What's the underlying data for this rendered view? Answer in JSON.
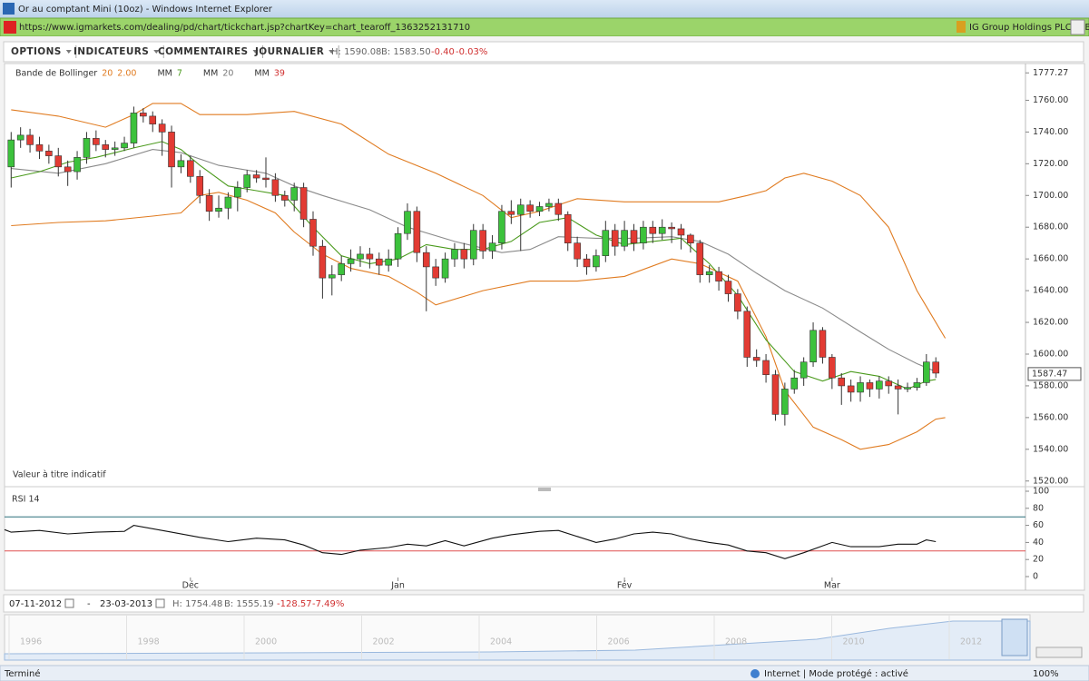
{
  "window": {
    "title": "Or au comptant Mini (10oz) - Windows Internet Explorer",
    "url": "https://www.igmarkets.com/dealing/pd/chart/tickchart.jsp?chartKey=chart_tearoff_1363252131710",
    "site": "IG Group Holdings PLC [GB]"
  },
  "toolbar": {
    "menus": [
      "OPTIONS",
      "INDICATEURS",
      "COMMENTAIRES",
      "JOURNALIER"
    ],
    "high": "H: 1590.08",
    "low": "B: 1583.50",
    "change": "-0.40",
    "change_pct": "-0.03%"
  },
  "chart_data": [
    {
      "type": "candlestick",
      "legend": [
        {
          "name": "Bande de Bollinger",
          "params": "20",
          "params2": "2.00",
          "color": "#e07b20"
        },
        {
          "name": "MM",
          "params": "7",
          "color": "#4a9a1c"
        },
        {
          "name": "MM",
          "params": "20",
          "color": "#777777"
        },
        {
          "name": "MM",
          "params": "39",
          "color": "#d03030"
        }
      ],
      "note": "Valeur à titre indicatif",
      "xlim": [
        -0.7,
        107.5
      ],
      "ylim": [
        1517,
        1782
      ],
      "yticks": [
        {
          "value": 1777.27,
          "label": "1777.27"
        },
        {
          "value": 1760,
          "label": "1760.00"
        },
        {
          "value": 1740,
          "label": "1740.00"
        },
        {
          "value": 1720,
          "label": "1720.00"
        },
        {
          "value": 1700,
          "label": "1700.00"
        },
        {
          "value": 1680,
          "label": "1680.00"
        },
        {
          "value": 1660,
          "label": "1660.00"
        },
        {
          "value": 1640,
          "label": "1640.00"
        },
        {
          "value": 1620,
          "label": "1620.00"
        },
        {
          "value": 1600,
          "label": "1600.00"
        },
        {
          "value": 1580,
          "label": "1580.00"
        },
        {
          "value": 1560,
          "label": "1560.00"
        },
        {
          "value": 1540,
          "label": "1540.00"
        },
        {
          "value": 1520,
          "label": "1520.00"
        }
      ],
      "last_price": {
        "value": 1587.47,
        "label": "1587.47"
      },
      "up_color": "#3cc23c",
      "down_color": "#e23b33",
      "open": [
        1718,
        1735,
        1738,
        1732,
        1728,
        1725,
        1718,
        1715,
        1724,
        1736,
        1732,
        1729,
        1730,
        1733,
        1752,
        1750,
        1745,
        1740,
        1718,
        1722,
        1712,
        1700,
        1690,
        1692,
        1699,
        1705,
        1713,
        1711,
        1710,
        1700,
        1697,
        1705,
        1685,
        1668,
        1648,
        1650,
        1657,
        1660,
        1663,
        1660,
        1656,
        1660,
        1676,
        1690,
        1664,
        1655,
        1648,
        1660,
        1666,
        1660,
        1678,
        1665,
        1670,
        1690,
        1688,
        1694,
        1690,
        1693,
        1695,
        1688,
        1670,
        1660,
        1655,
        1662,
        1678,
        1668,
        1678,
        1670,
        1680,
        1676,
        1680,
        1679,
        1675,
        1670,
        1650,
        1652,
        1646,
        1638,
        1627,
        1598,
        1596,
        1587,
        1562,
        1578,
        1585,
        1595,
        1615,
        1598,
        1585,
        1580,
        1576,
        1582,
        1578,
        1583,
        1580,
        1578,
        1579,
        1582,
        1595
      ],
      "high": [
        1740,
        1743,
        1742,
        1737,
        1732,
        1730,
        1722,
        1728,
        1740,
        1741,
        1735,
        1734,
        1737,
        1756,
        1755,
        1753,
        1748,
        1744,
        1726,
        1725,
        1716,
        1704,
        1700,
        1702,
        1709,
        1716,
        1716,
        1724,
        1714,
        1703,
        1708,
        1708,
        1690,
        1672,
        1656,
        1662,
        1666,
        1668,
        1667,
        1664,
        1666,
        1680,
        1695,
        1693,
        1668,
        1660,
        1664,
        1670,
        1670,
        1682,
        1682,
        1675,
        1694,
        1697,
        1698,
        1697,
        1696,
        1698,
        1698,
        1690,
        1674,
        1663,
        1666,
        1684,
        1682,
        1684,
        1682,
        1684,
        1684,
        1685,
        1683,
        1682,
        1676,
        1672,
        1656,
        1655,
        1650,
        1641,
        1630,
        1603,
        1600,
        1590,
        1582,
        1590,
        1598,
        1620,
        1617,
        1600,
        1588,
        1584,
        1586,
        1584,
        1586,
        1586,
        1584,
        1582,
        1585,
        1600,
        1598
      ],
      "low": [
        1705,
        1730,
        1727,
        1723,
        1720,
        1712,
        1706,
        1710,
        1720,
        1728,
        1724,
        1725,
        1728,
        1730,
        1746,
        1740,
        1725,
        1705,
        1714,
        1708,
        1695,
        1684,
        1686,
        1685,
        1690,
        1702,
        1708,
        1705,
        1696,
        1693,
        1690,
        1680,
        1662,
        1635,
        1637,
        1646,
        1652,
        1655,
        1654,
        1650,
        1652,
        1655,
        1672,
        1658,
        1627,
        1643,
        1645,
        1655,
        1654,
        1656,
        1660,
        1660,
        1666,
        1682,
        1665,
        1686,
        1687,
        1690,
        1684,
        1665,
        1655,
        1650,
        1652,
        1658,
        1662,
        1665,
        1665,
        1666,
        1670,
        1672,
        1670,
        1666,
        1664,
        1645,
        1645,
        1640,
        1633,
        1622,
        1592,
        1592,
        1582,
        1558,
        1555,
        1575,
        1580,
        1592,
        1594,
        1578,
        1568,
        1570,
        1570,
        1573,
        1572,
        1575,
        1562,
        1576,
        1577,
        1580,
        1585
      ],
      "close": [
        1735,
        1738,
        1732,
        1728,
        1725,
        1718,
        1715,
        1724,
        1736,
        1732,
        1729,
        1730,
        1733,
        1752,
        1750,
        1745,
        1740,
        1718,
        1722,
        1712,
        1700,
        1690,
        1692,
        1699,
        1705,
        1713,
        1711,
        1710,
        1700,
        1697,
        1705,
        1685,
        1668,
        1648,
        1650,
        1657,
        1660,
        1663,
        1660,
        1656,
        1660,
        1676,
        1690,
        1664,
        1655,
        1648,
        1660,
        1666,
        1660,
        1678,
        1665,
        1670,
        1690,
        1688,
        1694,
        1690,
        1693,
        1695,
        1688,
        1670,
        1660,
        1655,
        1662,
        1678,
        1668,
        1678,
        1670,
        1680,
        1676,
        1680,
        1679,
        1675,
        1670,
        1650,
        1652,
        1646,
        1638,
        1627,
        1598,
        1596,
        1587,
        1562,
        1578,
        1585,
        1595,
        1615,
        1598,
        1585,
        1580,
        1576,
        1582,
        1578,
        1583,
        1580,
        1578,
        1579,
        1582,
        1595,
        1588
      ],
      "series": [
        {
          "color": "#e07b20",
          "x": [
            0,
            5,
            10,
            13,
            15,
            18,
            20,
            25,
            30,
            35,
            40,
            45,
            50,
            53,
            56,
            60,
            65,
            70,
            75,
            78,
            80,
            82,
            84,
            87,
            90,
            93,
            96,
            99
          ],
          "values": [
            1754,
            1750,
            1743,
            1751,
            1758,
            1758,
            1751,
            1751,
            1753,
            1745,
            1726,
            1714,
            1700,
            1686,
            1690,
            1698,
            1696,
            1696,
            1696,
            1700,
            1703,
            1711,
            1714,
            1709,
            1700,
            1680,
            1640,
            1610
          ]
        },
        {
          "color": "#e07b20",
          "x": [
            0,
            5,
            10,
            15,
            18,
            20,
            22,
            25,
            28,
            30,
            33,
            36,
            40,
            43,
            45,
            50,
            55,
            60,
            65,
            70,
            73,
            77,
            80,
            82,
            85,
            88,
            90,
            93,
            96,
            98,
            99
          ],
          "values": [
            1681,
            1683,
            1684,
            1687,
            1689,
            1700,
            1702,
            1697,
            1689,
            1677,
            1663,
            1654,
            1649,
            1639,
            1631,
            1640,
            1646,
            1646,
            1649,
            1660,
            1657,
            1646,
            1611,
            1577,
            1554,
            1546,
            1540,
            1543,
            1551,
            1559,
            1560
          ]
        },
        {
          "color": "#8a8a8a",
          "x": [
            0,
            5,
            10,
            15,
            18,
            22,
            27,
            30,
            33,
            38,
            42,
            47,
            52,
            55,
            58,
            62,
            66,
            70,
            73,
            76,
            79,
            82,
            86,
            90,
            93,
            96,
            98
          ],
          "values": [
            1717,
            1714,
            1720,
            1729,
            1727,
            1719,
            1714,
            1706,
            1700,
            1691,
            1680,
            1671,
            1664,
            1666,
            1674,
            1673,
            1673,
            1674,
            1671,
            1663,
            1651,
            1640,
            1629,
            1614,
            1603,
            1594,
            1589
          ]
        },
        {
          "color": "#4a9a1c",
          "x": [
            0,
            3,
            6,
            9,
            13,
            16,
            18,
            20,
            23,
            26,
            29,
            32,
            35,
            38,
            41,
            44,
            47,
            50,
            53,
            56,
            59,
            62,
            65,
            68,
            71,
            74,
            77,
            80,
            83,
            86,
            89,
            92,
            95,
            97,
            98
          ],
          "values": [
            1711,
            1715,
            1721,
            1724,
            1730,
            1734,
            1729,
            1719,
            1706,
            1703,
            1700,
            1680,
            1662,
            1657,
            1660,
            1669,
            1666,
            1666,
            1671,
            1683,
            1686,
            1675,
            1669,
            1671,
            1673,
            1657,
            1637,
            1609,
            1589,
            1583,
            1589,
            1586,
            1578,
            1583,
            1584
          ]
        }
      ]
    },
    {
      "type": "line",
      "title": "RSI  14",
      "xlim": [
        -0.7,
        107.5
      ],
      "ylim": [
        0,
        100
      ],
      "yticks": [
        0,
        20,
        40,
        60,
        80,
        100
      ],
      "xticks": [
        {
          "value": 19,
          "label": "Déc"
        },
        {
          "value": 41,
          "label": "Jan"
        },
        {
          "value": 65,
          "label": "Fév"
        },
        {
          "value": 87,
          "label": "Mar"
        }
      ],
      "levels": [
        {
          "value": 70,
          "color": "#2a6f7a"
        },
        {
          "value": 30,
          "color": "#e05050"
        }
      ],
      "series": [
        {
          "color": "#111111",
          "x": [
            -0.7,
            0,
            3,
            6,
            9,
            12,
            13,
            17,
            20,
            23,
            26,
            29,
            31,
            33,
            35,
            37,
            40,
            42,
            44,
            46,
            48,
            51,
            53,
            56,
            58,
            60,
            62,
            64,
            66,
            68,
            70,
            72,
            74,
            76,
            78,
            80,
            82,
            84,
            87,
            89,
            92,
            94,
            96,
            97,
            98
          ],
          "values": [
            55,
            52,
            54,
            50,
            52,
            53,
            60,
            52,
            46,
            41,
            45,
            43,
            37,
            28,
            26,
            31,
            34,
            38,
            36,
            42,
            36,
            45,
            49,
            53,
            54,
            47,
            40,
            44,
            50,
            52,
            50,
            44,
            40,
            37,
            30,
            28,
            21,
            28,
            40,
            35,
            35,
            38,
            38,
            43,
            41
          ]
        }
      ]
    }
  ],
  "range_bar": {
    "start": "07-11-2012",
    "dash": "-",
    "end": "23-03-2013",
    "high": "H: 1754.48",
    "low": "B: 1555.19",
    "change": "-128.57",
    "change_pct": "-7.49%"
  },
  "overview": {
    "years": [
      "1996",
      "1998",
      "2000",
      "2002",
      "2004",
      "2006",
      "2008",
      "2010",
      "2012"
    ]
  },
  "status": {
    "left": "Terminé",
    "zone": "Internet | Mode protégé : activé",
    "zoom": "100%"
  }
}
